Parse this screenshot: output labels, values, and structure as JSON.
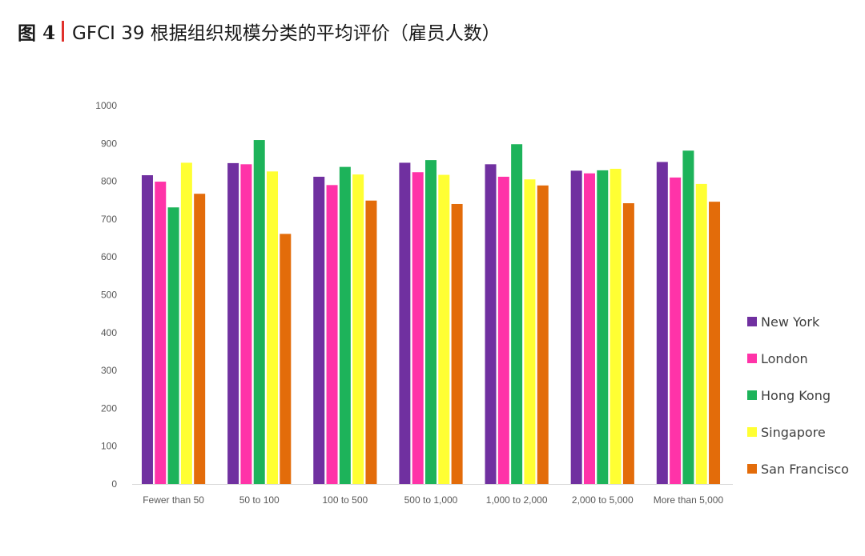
{
  "figure": {
    "number_label": "图 4",
    "title": "GFCI 39 根据组织规模分类的平均评价（雇员人数）",
    "separator_color": "#e0312b"
  },
  "chart_data": {
    "type": "bar",
    "title": "",
    "xlabel": "",
    "ylabel": "",
    "ylim": [
      0,
      1000
    ],
    "yticks": [
      0,
      100,
      200,
      300,
      400,
      500,
      600,
      700,
      800,
      900,
      1000
    ],
    "grid": false,
    "legend_position": "right",
    "categories": [
      "Fewer than 50",
      "50 to 100",
      "100 to 500",
      "500 to 1,000",
      "1,000 to 2,000",
      "2,000 to 5,000",
      "More than 5,000"
    ],
    "series": [
      {
        "name": "New York",
        "color": "#7030a0",
        "values": [
          816,
          848,
          812,
          849,
          845,
          828,
          851
        ]
      },
      {
        "name": "London",
        "color": "#ff33a8",
        "values": [
          799,
          845,
          790,
          824,
          812,
          821,
          810
        ]
      },
      {
        "name": "Hong Kong",
        "color": "#1db35a",
        "values": [
          731,
          909,
          838,
          856,
          898,
          829,
          881
        ]
      },
      {
        "name": "Singapore",
        "color": "#ffff33",
        "values": [
          849,
          826,
          818,
          817,
          805,
          833,
          793
        ]
      },
      {
        "name": "San Francisco",
        "color": "#e36c0a",
        "values": [
          767,
          661,
          749,
          740,
          789,
          742,
          746
        ]
      }
    ]
  }
}
